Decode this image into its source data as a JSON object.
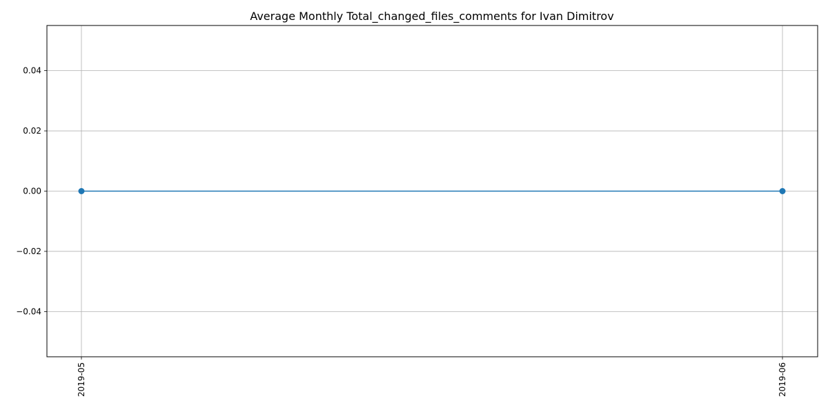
{
  "chart_data": {
    "type": "line",
    "title": "Average Monthly Total_changed_files_comments for Ivan Dimitrov",
    "xlabel": "",
    "ylabel": "",
    "categories": [
      "2019-05",
      "2019-06"
    ],
    "series": [
      {
        "values": [
          0.0,
          0.0
        ],
        "color": "#1f77b4",
        "marker": "circle"
      }
    ],
    "ylim": [
      -0.055,
      0.055
    ],
    "yticks": [
      -0.04,
      -0.02,
      0.0,
      0.02,
      0.04
    ],
    "ytick_labels": [
      "−0.04",
      "−0.02",
      "0.00",
      "0.02",
      "0.04"
    ],
    "grid": true,
    "grid_color": "#b0b0b0",
    "xtick_rotation": "vertical"
  }
}
